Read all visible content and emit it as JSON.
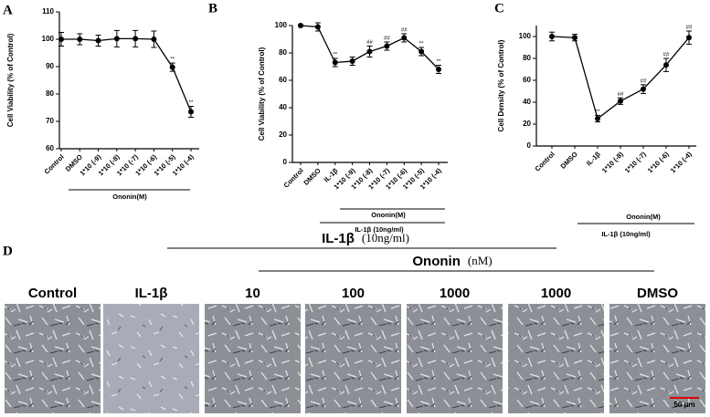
{
  "chart_data": [
    {
      "type": "line",
      "panel": "A",
      "y_label": "Cell Viability (% of Control)",
      "categories": [
        "Control",
        "DMSO",
        "1*10 (-9)",
        "1*10 (-8)",
        "1*10 (-7)",
        "1*10 (-6)",
        "1*10 (-5)",
        "1*10 (-4)"
      ],
      "values": [
        100,
        100,
        99.5,
        100.2,
        100.2,
        100,
        89.8,
        73.5
      ],
      "errors": [
        2.5,
        2,
        2,
        3,
        3,
        3,
        1.5,
        2
      ],
      "annotations": [
        null,
        null,
        null,
        null,
        null,
        null,
        "**",
        "**"
      ],
      "groups": [
        "Ononin(M)"
      ],
      "color": "#000000",
      "ylim": [
        60,
        110
      ],
      "yticks": [
        60,
        70,
        80,
        90,
        100,
        110
      ]
    },
    {
      "type": "line",
      "panel": "B",
      "y_label": "Cell Viability (% of Control)",
      "categories": [
        "Control",
        "DMSO",
        "IL-1β",
        "1*10 (-9)",
        "1*10 (-8)",
        "1*10 (-7)",
        "1*10 (-6)",
        "1*10 (-5)",
        "1*10 (-4)"
      ],
      "values": [
        100,
        99,
        73,
        74,
        81,
        85,
        91,
        81,
        68
      ],
      "errors": [
        0.5,
        3,
        3,
        3,
        4,
        3,
        3,
        3,
        3
      ],
      "annotations": [
        null,
        null,
        "**",
        null,
        "##",
        "##",
        "##",
        "**",
        "**"
      ],
      "groups": [
        "Ononin(M)",
        "IL-1β (10ng/ml)"
      ],
      "color": "#000000",
      "ylim": [
        0,
        100
      ],
      "yticks": [
        0,
        20,
        40,
        60,
        80,
        100
      ]
    },
    {
      "type": "line",
      "panel": "C",
      "y_label": "Cell Density (% of Control)",
      "categories": [
        "Control",
        "DMSO",
        "IL-1β",
        "1*10 (-8)",
        "1*10 (-7)",
        "1*10 (-6)",
        "1*10 (-4)"
      ],
      "values": [
        100,
        99,
        25,
        41,
        52,
        74,
        99
      ],
      "errors": [
        4,
        3,
        3,
        3,
        4,
        6,
        6
      ],
      "annotations": [
        null,
        null,
        "**",
        "##",
        "##",
        "##",
        "##"
      ],
      "groups": [
        "Ononin(M)",
        "IL-1β (10ng/ml)"
      ],
      "color": "#000000",
      "ylim": [
        0,
        110
      ],
      "yticks": [
        0,
        20,
        40,
        60,
        80,
        100
      ]
    }
  ],
  "panel_d": {
    "panel": "D",
    "treatment": "IL-1β",
    "treatment_unit": "(10ng/ml)",
    "drug": "Ononin",
    "drug_unit": "(nM)",
    "images": [
      "Control",
      "IL-1β",
      "10",
      "100",
      "1000",
      "1000",
      "DMSO"
    ],
    "scale_bar": "50 μm"
  }
}
